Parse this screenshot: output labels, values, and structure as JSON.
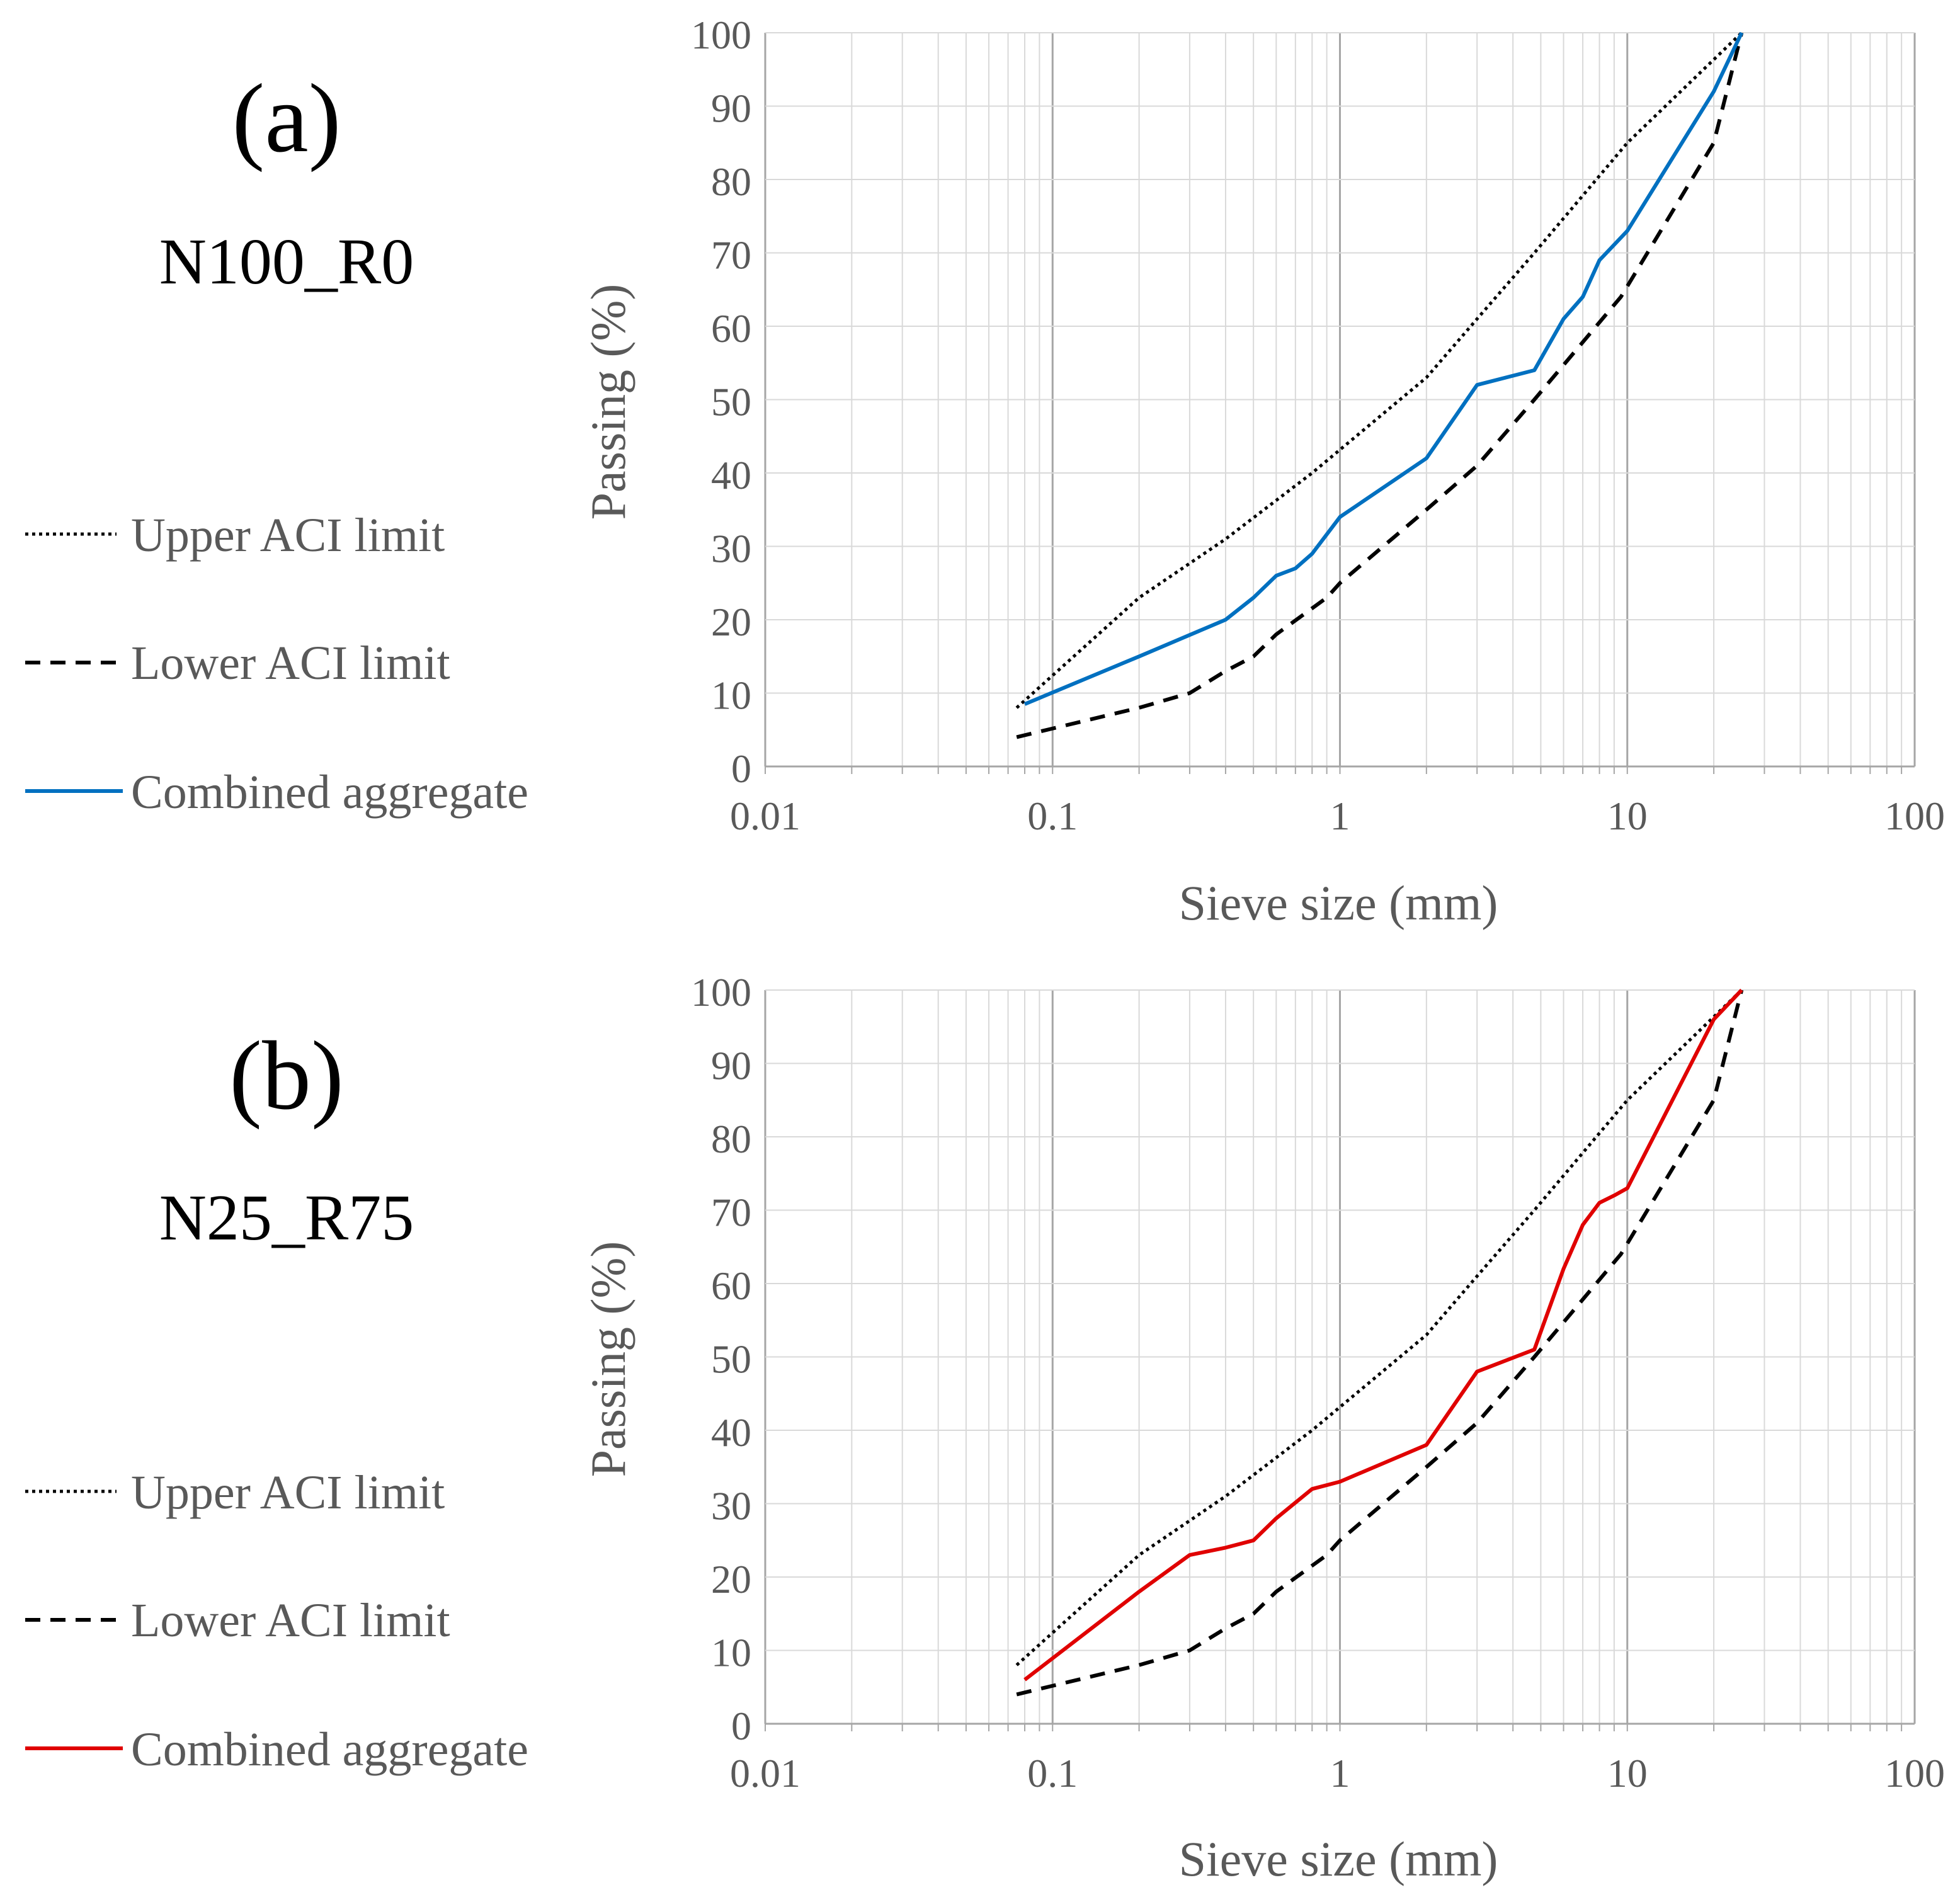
{
  "figure": {
    "panels": [
      {
        "id": "a",
        "panel_label": "(a)",
        "mix_label": "N100_R0",
        "legend": {
          "upper": "Upper ACI limit",
          "lower": "Lower ACI limit",
          "combined": "Combined aggregate"
        }
      },
      {
        "id": "b",
        "panel_label": "(b)",
        "mix_label": "N25_R75",
        "legend": {
          "upper": "Upper ACI limit",
          "lower": "Lower ACI limit",
          "combined": "Combined aggregate"
        }
      }
    ]
  },
  "colors": {
    "upper_limit": "#000000",
    "lower_limit": "#000000",
    "combined_a": "#0070C0",
    "combined_b": "#E00000",
    "grid_major": "#A6A6A6",
    "grid_minor": "#D9D9D9",
    "text": "#595959"
  },
  "chart_data": [
    {
      "type": "line",
      "title": "N100_R0",
      "xlabel": "Sieve size (mm)",
      "ylabel": "Passing (%)",
      "xscale": "log",
      "xlim": [
        0.01,
        100
      ],
      "ylim": [
        0,
        100
      ],
      "xticks": [
        0.01,
        0.1,
        1,
        10,
        100
      ],
      "xtick_labels": [
        "0.01",
        "0.1",
        "1",
        "10",
        "100"
      ],
      "yticks": [
        0,
        10,
        20,
        30,
        40,
        50,
        60,
        70,
        80,
        90,
        100
      ],
      "ytick_labels": [
        "0",
        "10",
        "20",
        "30",
        "40",
        "50",
        "60",
        "70",
        "80",
        "90",
        "100"
      ],
      "grid": true,
      "series": [
        {
          "name": "Upper ACI limit",
          "style": "dotted",
          "x": [
            0.075,
            0.2,
            0.4,
            0.8,
            2,
            3,
            4.75,
            10,
            25
          ],
          "y": [
            8,
            23,
            31,
            40,
            53,
            61,
            70,
            85,
            100
          ]
        },
        {
          "name": "Lower ACI limit",
          "style": "dashed",
          "x": [
            0.075,
            0.2,
            0.3,
            0.4,
            0.5,
            0.6,
            0.9,
            1,
            2,
            3,
            4.75,
            9.5,
            20,
            25
          ],
          "y": [
            4,
            8,
            10,
            13,
            15,
            18,
            23,
            25,
            35,
            41,
            50,
            64,
            85,
            100
          ]
        },
        {
          "name": "Combined aggregate",
          "style": "solid",
          "x": [
            0.08,
            0.2,
            0.4,
            0.5,
            0.6,
            0.7,
            0.8,
            1,
            2,
            3,
            4.75,
            6,
            7,
            8,
            10,
            20,
            25
          ],
          "y": [
            8.5,
            15,
            20,
            23,
            26,
            27,
            29,
            34,
            42,
            52,
            54,
            61,
            64,
            69,
            73,
            92,
            100
          ]
        }
      ]
    },
    {
      "type": "line",
      "title": "N25_R75",
      "xlabel": "Sieve size (mm)",
      "ylabel": "Passing (%)",
      "xscale": "log",
      "xlim": [
        0.01,
        100
      ],
      "ylim": [
        0,
        100
      ],
      "xticks": [
        0.01,
        0.1,
        1,
        10,
        100
      ],
      "xtick_labels": [
        "0.01",
        "0.1",
        "1",
        "10",
        "100"
      ],
      "yticks": [
        0,
        10,
        20,
        30,
        40,
        50,
        60,
        70,
        80,
        90,
        100
      ],
      "ytick_labels": [
        "0",
        "10",
        "20",
        "30",
        "40",
        "50",
        "60",
        "70",
        "80",
        "90",
        "100"
      ],
      "grid": true,
      "series": [
        {
          "name": "Upper ACI limit",
          "style": "dotted",
          "x": [
            0.075,
            0.2,
            0.4,
            0.8,
            2,
            3,
            4.75,
            10,
            25
          ],
          "y": [
            8,
            23,
            31,
            40,
            53,
            61,
            70,
            85,
            100
          ]
        },
        {
          "name": "Lower ACI limit",
          "style": "dashed",
          "x": [
            0.075,
            0.2,
            0.3,
            0.4,
            0.5,
            0.6,
            0.9,
            1,
            2,
            3,
            4.75,
            9.5,
            20,
            25
          ],
          "y": [
            4,
            8,
            10,
            13,
            15,
            18,
            23,
            25,
            35,
            41,
            50,
            64,
            85,
            100
          ]
        },
        {
          "name": "Combined aggregate",
          "style": "solid",
          "x": [
            0.08,
            0.2,
            0.3,
            0.4,
            0.5,
            0.6,
            0.8,
            1,
            2,
            3,
            4.75,
            6,
            7,
            8,
            9,
            10,
            20,
            25
          ],
          "y": [
            6,
            18,
            23,
            24,
            25,
            28,
            32,
            33,
            38,
            48,
            51,
            62,
            68,
            71,
            72,
            73,
            96,
            100
          ]
        }
      ]
    }
  ]
}
